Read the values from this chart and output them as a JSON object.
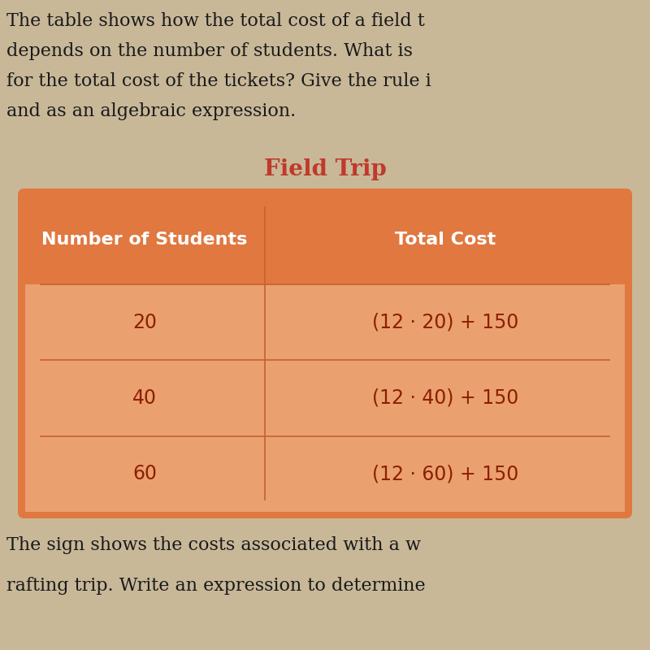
{
  "title": "Field Trip",
  "title_color": "#c0392b",
  "header_col1": "Number of Students",
  "header_col2": "Total Cost",
  "rows": [
    [
      "20",
      "(12 · 20) + 150"
    ],
    [
      "40",
      "(12 · 40) + 150"
    ],
    [
      "60",
      "(12 · 60) + 150"
    ]
  ],
  "table_bg_color": "#E07840",
  "row_bg_light": "#EBA070",
  "divider_color": "#C86030",
  "text_color_header": "#ffffff",
  "text_color_rows": "#8B2000",
  "page_bg_color": "#C8B898",
  "top_text_lines": [
    "The table shows how the total cost of a field t",
    "depends on the number of students. What is",
    "for the total cost of the tickets? Give the rule i",
    "and as an algebraic expression."
  ],
  "bottom_text_lines": [
    "The sign shows the costs associated with a w",
    "rafting trip. Write an expression to determine"
  ]
}
